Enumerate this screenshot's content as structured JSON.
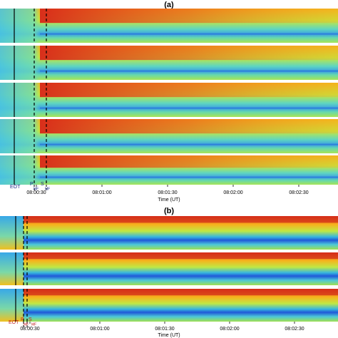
{
  "panels": [
    {
      "label": "(a)",
      "annotations": [
        "EOT",
        "P",
        "MF",
        "S",
        "MF"
      ],
      "x_ticks": [
        "08:00:30",
        "08:01:00",
        "08:01:30",
        "08:02:00",
        "08:02:30"
      ],
      "x_label": "Time (UT)"
    },
    {
      "label": "(b)",
      "annotations": [
        "EOT",
        "P",
        "MF",
        "S",
        "MF"
      ],
      "x_ticks": [
        "08:00:30",
        "08:01:00",
        "08:01:30",
        "08:02:00",
        "08:02:30"
      ],
      "x_label": "Time (UT)"
    }
  ]
}
